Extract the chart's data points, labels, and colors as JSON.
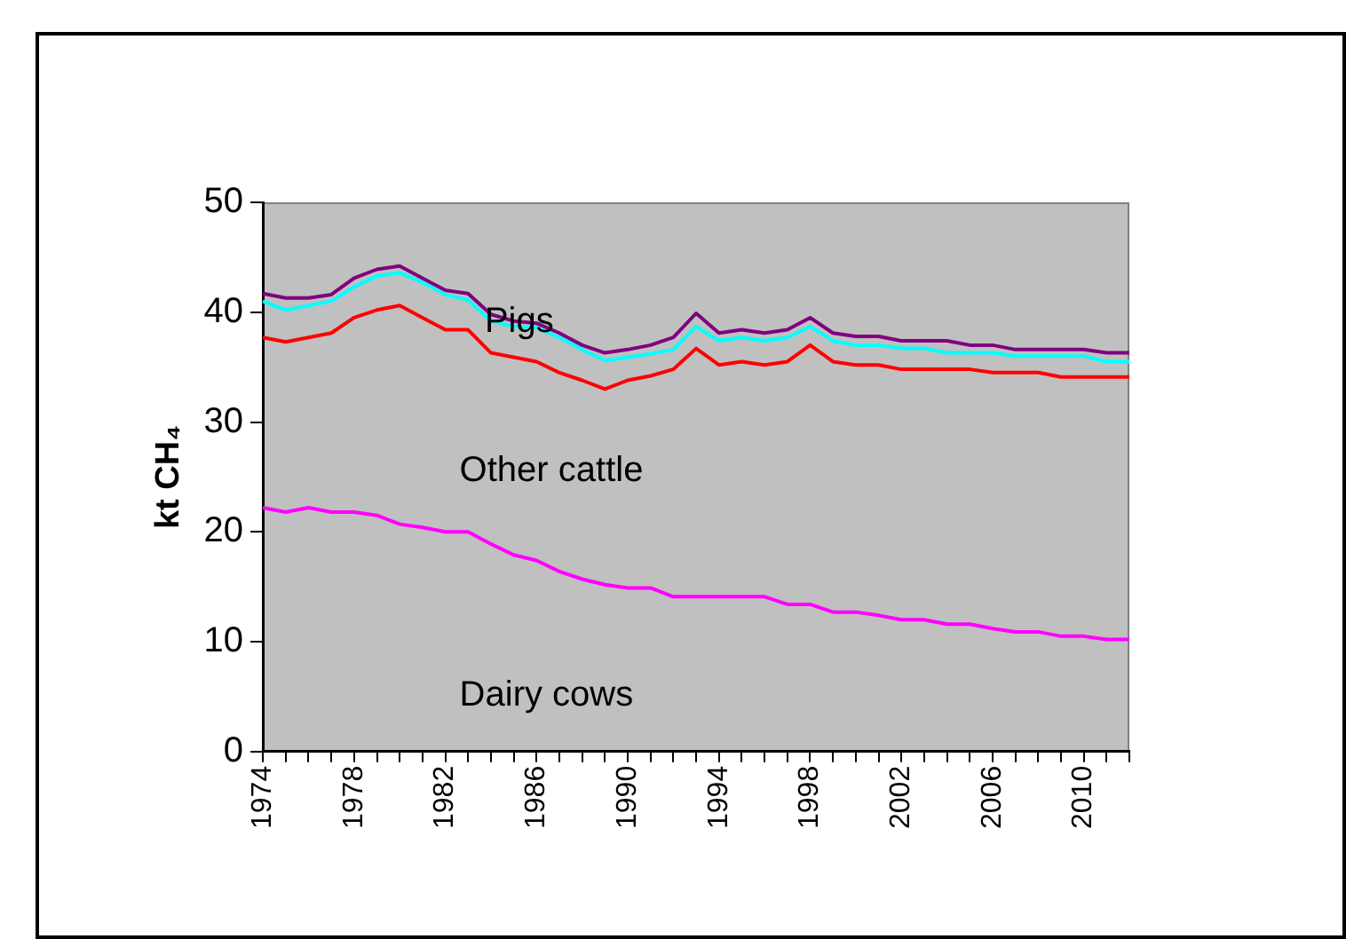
{
  "chart_data": {
    "type": "line",
    "ylabel": "kt CH₄",
    "categories": [
      "1974",
      null,
      null,
      null,
      "1978",
      null,
      null,
      null,
      "1982",
      null,
      null,
      null,
      "1986",
      null,
      null,
      null,
      "1990",
      null,
      null,
      null,
      "1994",
      null,
      null,
      null,
      "1998",
      null,
      null,
      null,
      "2002",
      null,
      null,
      null,
      "2006",
      null,
      null,
      null,
      "2010",
      null,
      null
    ],
    "series": [
      {
        "color": "#ff00ff",
        "values": [
          22.2,
          21.8,
          22.2,
          21.8,
          21.8,
          21.5,
          20.7,
          20.4,
          20,
          20,
          18.9,
          17.9,
          17.4,
          16.4,
          15.7,
          15.2,
          14.9,
          14.9,
          14.1,
          14.1,
          14.1,
          14.1,
          14.1,
          13.4,
          13.4,
          12.7,
          12.7,
          12.4,
          12,
          12,
          11.6,
          11.6,
          11.2,
          10.9,
          10.9,
          10.5,
          10.5,
          10.2,
          10.2
        ]
      },
      {
        "color": "#ff0000",
        "values": [
          37.7,
          37.3,
          37.7,
          38.1,
          39.5,
          40.2,
          40.6,
          39.5,
          38.4,
          38.4,
          36.3,
          35.9,
          35.5,
          34.5,
          33.8,
          33.0,
          33.8,
          34.2,
          34.8,
          36.7,
          35.2,
          35.5,
          35.2,
          35.5,
          37.0,
          35.5,
          35.2,
          35.2,
          34.8,
          34.8,
          34.8,
          34.8,
          34.5,
          34.5,
          34.5,
          34.1,
          34.1,
          34.1,
          34.1
        ]
      },
      {
        "color": "#00ffff",
        "values": [
          41.0,
          40.2,
          40.6,
          41.0,
          42.3,
          43.3,
          43.6,
          42.7,
          41.6,
          41.1,
          39.2,
          38.7,
          38.6,
          37.7,
          36.6,
          35.6,
          35.9,
          36.2,
          36.6,
          38.7,
          37.4,
          37.7,
          37.4,
          37.7,
          38.7,
          37.4,
          37.0,
          37.0,
          36.7,
          36.7,
          36.3,
          36.3,
          36.3,
          36.0,
          36.0,
          36.0,
          36.0,
          35.5,
          35.5
        ]
      },
      {
        "color": "#800080",
        "values": [
          41.7,
          41.3,
          41.3,
          41.6,
          43.1,
          43.9,
          44.2,
          43.1,
          42.0,
          41.7,
          39.8,
          39.2,
          39.0,
          38.1,
          37.0,
          36.3,
          36.6,
          37.0,
          37.7,
          39.9,
          38.1,
          38.4,
          38.1,
          38.4,
          39.5,
          38.1,
          37.8,
          37.8,
          37.4,
          37.4,
          37.4,
          37.0,
          37.0,
          36.6,
          36.6,
          36.6,
          36.6,
          36.3,
          36.3
        ]
      }
    ],
    "ylim": [
      0,
      50
    ],
    "yticks": [
      0,
      10,
      20,
      30,
      40,
      50
    ],
    "marker": "none",
    "line_style": "solid",
    "legend": false,
    "annotations": [
      "Pigs",
      "Other cattle",
      "Dairy cows"
    ]
  }
}
